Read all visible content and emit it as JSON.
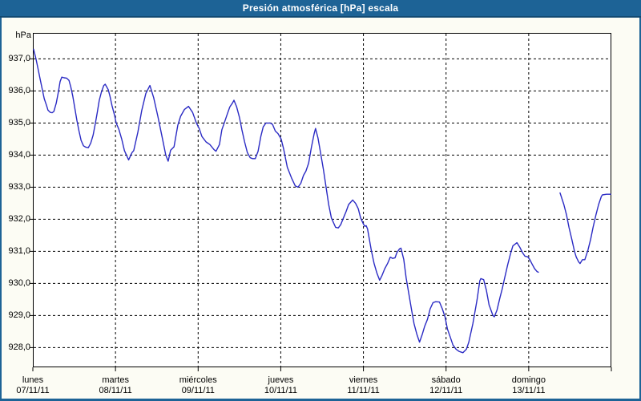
{
  "window": {
    "title": "Presión atmosférica [hPa] escala"
  },
  "colors": {
    "titlebar_bg": "#1D6396",
    "titlebar_text": "#FFFFFF",
    "window_border": "#1D6396",
    "content_bg": "#FCFCF4",
    "plot_bg": "#FFFFFF",
    "grid_color": "#000000",
    "axis_color": "#000000",
    "line_color": "#2B2BC4",
    "label_color": "#000000"
  },
  "chart_data": {
    "type": "line",
    "title": "Presión atmosférica [hPa] escala",
    "unit_label": "hPa",
    "decimal_separator": ",",
    "ylim": [
      927.4,
      937.8
    ],
    "grid": {
      "horizontal": "dashed",
      "vertical": "dashed"
    },
    "legend": "none",
    "y_ticks": [
      {
        "value": 937,
        "label": "937,0"
      },
      {
        "value": 936,
        "label": "936,0"
      },
      {
        "value": 935,
        "label": "935,0"
      },
      {
        "value": 934,
        "label": "934,0"
      },
      {
        "value": 933,
        "label": "933,0"
      },
      {
        "value": 932,
        "label": "932,0"
      },
      {
        "value": 931,
        "label": "931,0"
      },
      {
        "value": 930,
        "label": "930,0"
      },
      {
        "value": 929,
        "label": "929,0"
      },
      {
        "value": 928,
        "label": "928,0"
      }
    ],
    "x_axis": {
      "hours_total": 168,
      "days": [
        {
          "name": "lunes",
          "date": "07/11/11"
        },
        {
          "name": "martes",
          "date": "08/11/11"
        },
        {
          "name": "miércoles",
          "date": "09/11/11"
        },
        {
          "name": "jueves",
          "date": "10/11/11"
        },
        {
          "name": "viernes",
          "date": "11/11/11"
        },
        {
          "name": "sábado",
          "date": "12/11/11"
        },
        {
          "name": "domingo",
          "date": "13/11/11"
        }
      ]
    },
    "series": [
      {
        "name": "Presión atmosférica",
        "unit": "hPa",
        "color": "#2B2BC4",
        "segments": [
          [
            [
              0.2,
              937.3
            ],
            [
              0.9,
              937.0
            ],
            [
              1.5,
              936.7
            ],
            [
              2.1,
              936.38
            ],
            [
              2.7,
              936.07
            ],
            [
              3.3,
              935.76
            ],
            [
              4.0,
              935.54
            ],
            [
              4.4,
              935.4
            ],
            [
              5.1,
              935.33
            ],
            [
              5.6,
              935.32
            ],
            [
              6.1,
              935.36
            ],
            [
              6.8,
              935.62
            ],
            [
              7.4,
              935.96
            ],
            [
              7.9,
              936.29
            ],
            [
              8.4,
              936.43
            ],
            [
              9.1,
              936.41
            ],
            [
              9.8,
              936.4
            ],
            [
              10.5,
              936.33
            ],
            [
              11.0,
              936.13
            ],
            [
              11.6,
              935.83
            ],
            [
              12.2,
              935.46
            ],
            [
              12.8,
              935.08
            ],
            [
              13.4,
              934.75
            ],
            [
              14.0,
              934.46
            ],
            [
              14.7,
              934.29
            ],
            [
              15.3,
              934.25
            ],
            [
              16.1,
              934.23
            ],
            [
              16.8,
              934.37
            ],
            [
              17.5,
              934.62
            ],
            [
              18.1,
              934.96
            ],
            [
              18.7,
              935.33
            ],
            [
              19.3,
              935.71
            ],
            [
              19.9,
              935.96
            ],
            [
              20.6,
              936.17
            ],
            [
              21.0,
              936.21
            ],
            [
              21.9,
              936.04
            ],
            [
              22.4,
              935.83
            ],
            [
              23.0,
              935.54
            ],
            [
              23.7,
              935.25
            ],
            [
              24.2,
              935.0
            ],
            [
              25.0,
              934.8
            ],
            [
              25.8,
              934.5
            ],
            [
              26.6,
              934.14
            ],
            [
              27.8,
              933.85
            ],
            [
              28.8,
              934.08
            ],
            [
              29.3,
              934.14
            ],
            [
              30.5,
              934.72
            ],
            [
              31.6,
              935.38
            ],
            [
              32.8,
              935.92
            ],
            [
              34.0,
              936.17
            ],
            [
              35.1,
              935.79
            ],
            [
              36.3,
              935.21
            ],
            [
              37.5,
              934.58
            ],
            [
              38.6,
              934.0
            ],
            [
              39.3,
              933.81
            ],
            [
              40.0,
              934.15
            ],
            [
              41.0,
              934.26
            ],
            [
              42.1,
              934.93
            ],
            [
              42.9,
              935.21
            ],
            [
              44.0,
              935.42
            ],
            [
              45.2,
              935.52
            ],
            [
              46.4,
              935.33
            ],
            [
              47.5,
              935.0
            ],
            [
              48.3,
              934.83
            ],
            [
              49.1,
              934.58
            ],
            [
              50.3,
              934.41
            ],
            [
              51.4,
              934.33
            ],
            [
              52.6,
              934.17
            ],
            [
              53.2,
              934.12
            ],
            [
              54.2,
              934.33
            ],
            [
              54.9,
              934.79
            ],
            [
              55.7,
              935.04
            ],
            [
              56.5,
              935.29
            ],
            [
              57.2,
              935.5
            ],
            [
              58.0,
              935.63
            ],
            [
              58.4,
              935.71
            ],
            [
              59.2,
              935.5
            ],
            [
              60.0,
              935.17
            ],
            [
              60.7,
              934.79
            ],
            [
              61.5,
              934.41
            ],
            [
              62.3,
              934.08
            ],
            [
              63.1,
              933.92
            ],
            [
              63.8,
              933.89
            ],
            [
              64.6,
              933.89
            ],
            [
              65.4,
              934.12
            ],
            [
              66.2,
              934.58
            ],
            [
              66.9,
              934.88
            ],
            [
              67.7,
              935.0
            ],
            [
              68.9,
              935.0
            ],
            [
              69.6,
              934.96
            ],
            [
              70.4,
              934.75
            ],
            [
              71.2,
              934.67
            ],
            [
              72.1,
              934.5
            ],
            [
              72.8,
              934.2
            ],
            [
              73.9,
              933.62
            ],
            [
              75.1,
              933.29
            ],
            [
              76.2,
              933.04
            ],
            [
              77.0,
              933.0
            ],
            [
              77.8,
              933.12
            ],
            [
              78.6,
              933.37
            ],
            [
              79.3,
              933.5
            ],
            [
              80.1,
              933.75
            ],
            [
              80.9,
              934.25
            ],
            [
              81.7,
              934.67
            ],
            [
              82.1,
              934.83
            ],
            [
              82.8,
              934.54
            ],
            [
              83.6,
              934.04
            ],
            [
              84.4,
              933.54
            ],
            [
              85.2,
              932.96
            ],
            [
              85.9,
              932.46
            ],
            [
              86.7,
              932.04
            ],
            [
              87.9,
              931.75
            ],
            [
              88.7,
              931.73
            ],
            [
              89.4,
              931.83
            ],
            [
              90.2,
              932.04
            ],
            [
              91.0,
              932.25
            ],
            [
              91.7,
              932.46
            ],
            [
              92.9,
              932.6
            ],
            [
              93.7,
              932.5
            ],
            [
              94.5,
              932.33
            ],
            [
              95.2,
              932.04
            ],
            [
              96.0,
              931.85
            ],
            [
              96.4,
              931.78
            ],
            [
              96.8,
              931.8
            ],
            [
              97.2,
              931.7
            ],
            [
              97.6,
              931.46
            ],
            [
              98.3,
              931.02
            ],
            [
              99.1,
              930.62
            ],
            [
              99.9,
              930.33
            ],
            [
              100.7,
              930.1
            ],
            [
              101.4,
              930.25
            ],
            [
              102.2,
              930.46
            ],
            [
              103.0,
              930.62
            ],
            [
              103.8,
              930.82
            ],
            [
              104.5,
              930.78
            ],
            [
              105.2,
              930.8
            ],
            [
              105.7,
              930.96
            ],
            [
              106.5,
              931.08
            ],
            [
              106.9,
              931.1
            ],
            [
              107.7,
              930.75
            ],
            [
              108.4,
              930.17
            ],
            [
              109.2,
              929.67
            ],
            [
              110.0,
              929.17
            ],
            [
              110.7,
              928.75
            ],
            [
              111.5,
              928.42
            ],
            [
              112.3,
              928.17
            ],
            [
              113.1,
              928.42
            ],
            [
              113.8,
              928.67
            ],
            [
              114.6,
              928.88
            ],
            [
              115.4,
              929.21
            ],
            [
              116.2,
              929.4
            ],
            [
              117.0,
              929.43
            ],
            [
              118.1,
              929.42
            ],
            [
              118.9,
              929.21
            ],
            [
              119.7,
              928.96
            ],
            [
              120.4,
              928.58
            ],
            [
              121.2,
              928.33
            ],
            [
              122.0,
              928.08
            ],
            [
              122.9,
              927.95
            ],
            [
              123.8,
              927.88
            ],
            [
              124.9,
              927.84
            ],
            [
              125.9,
              927.95
            ],
            [
              126.6,
              928.17
            ],
            [
              127.8,
              928.75
            ],
            [
              129.0,
              929.49
            ],
            [
              129.8,
              930.08
            ],
            [
              130.1,
              930.15
            ],
            [
              130.9,
              930.12
            ],
            [
              131.7,
              929.79
            ],
            [
              132.5,
              929.33
            ],
            [
              133.6,
              929.0
            ],
            [
              134.0,
              928.96
            ],
            [
              134.8,
              929.17
            ],
            [
              135.6,
              929.54
            ],
            [
              136.3,
              929.83
            ],
            [
              137.1,
              930.21
            ],
            [
              137.9,
              930.58
            ],
            [
              138.7,
              930.92
            ],
            [
              139.4,
              931.17
            ],
            [
              140.6,
              931.27
            ],
            [
              141.4,
              931.13
            ],
            [
              142.2,
              930.96
            ],
            [
              142.9,
              930.85
            ],
            [
              143.7,
              930.83
            ],
            [
              144.3,
              930.75
            ],
            [
              144.9,
              930.62
            ],
            [
              145.7,
              930.46
            ],
            [
              146.4,
              930.37
            ],
            [
              146.8,
              930.35
            ]
          ],
          [
            [
              153.1,
              932.82
            ],
            [
              154.2,
              932.46
            ],
            [
              155.0,
              932.13
            ],
            [
              155.7,
              931.75
            ],
            [
              156.5,
              931.38
            ],
            [
              157.3,
              931.0
            ],
            [
              157.8,
              930.82
            ],
            [
              158.5,
              930.67
            ],
            [
              158.9,
              930.62
            ],
            [
              159.6,
              930.74
            ],
            [
              160.3,
              930.74
            ],
            [
              161.2,
              931.04
            ],
            [
              162.0,
              931.38
            ],
            [
              162.7,
              931.75
            ],
            [
              163.5,
              932.13
            ],
            [
              164.3,
              932.46
            ],
            [
              165.1,
              932.71
            ],
            [
              165.4,
              932.76
            ],
            [
              166.6,
              932.78
            ],
            [
              167.8,
              932.78
            ]
          ]
        ]
      }
    ]
  }
}
